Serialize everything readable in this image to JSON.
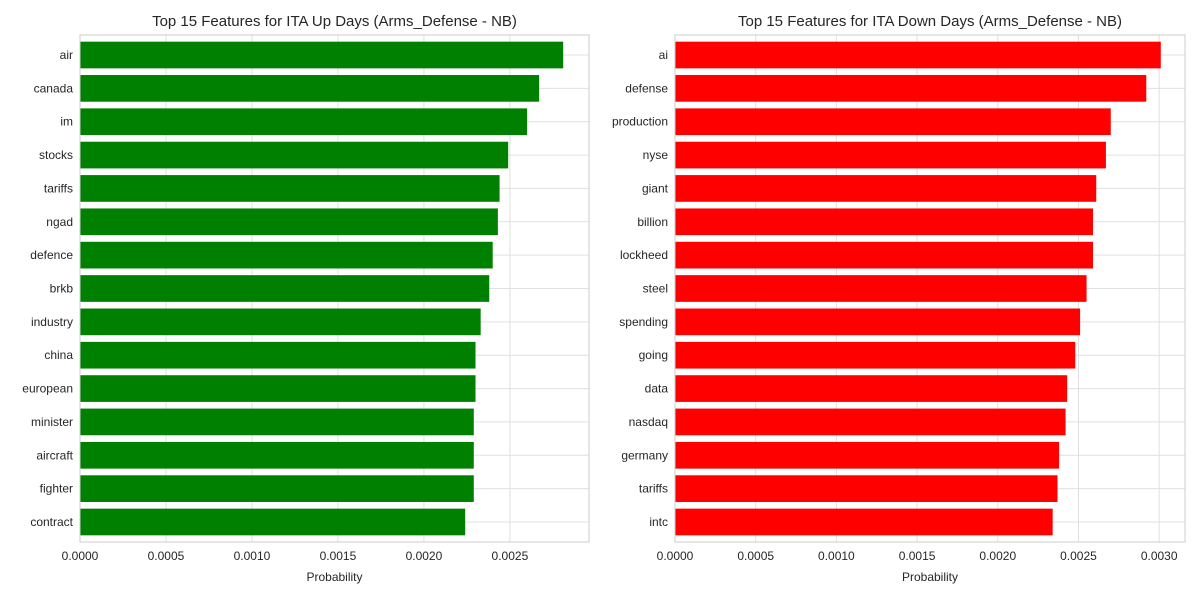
{
  "chart_data": [
    {
      "type": "bar",
      "orientation": "horizontal",
      "title": "Top 15 Features for ITA Up Days (Arms_Defense - NB)",
      "xlabel": "Probability",
      "ylabel": "",
      "xlim": [
        0,
        0.00296
      ],
      "xticks": [
        "0.0000",
        "0.0005",
        "0.0010",
        "0.0015",
        "0.0020",
        "0.0025"
      ],
      "xtick_values": [
        0,
        0.0005,
        0.001,
        0.0015,
        0.002,
        0.0025
      ],
      "grid": true,
      "color": "#008000",
      "categories": [
        "air",
        "canada",
        "im",
        "stocks",
        "tariffs",
        "ngad",
        "defence",
        "brkb",
        "industry",
        "china",
        "european",
        "minister",
        "aircraft",
        "fighter",
        "contract"
      ],
      "values": [
        0.00281,
        0.00267,
        0.0026,
        0.00249,
        0.00244,
        0.00243,
        0.0024,
        0.00238,
        0.00233,
        0.0023,
        0.0023,
        0.00229,
        0.00229,
        0.00229,
        0.00224
      ]
    },
    {
      "type": "bar",
      "orientation": "horizontal",
      "title": "Top 15 Features for ITA Down Days (Arms_Defense - NB)",
      "xlabel": "Probability",
      "ylabel": "",
      "xlim": [
        0,
        0.00316
      ],
      "xticks": [
        "0.0000",
        "0.0005",
        "0.0010",
        "0.0015",
        "0.0020",
        "0.0025",
        "0.0030"
      ],
      "xtick_values": [
        0,
        0.0005,
        0.001,
        0.0015,
        0.002,
        0.0025,
        0.003
      ],
      "grid": true,
      "color": "#ff0000",
      "categories": [
        "ai",
        "defense",
        "production",
        "nyse",
        "giant",
        "billion",
        "lockheed",
        "steel",
        "spending",
        "going",
        "data",
        "nasdaq",
        "germany",
        "tariffs",
        "intc"
      ],
      "values": [
        0.00301,
        0.00292,
        0.0027,
        0.00267,
        0.00261,
        0.00259,
        0.00259,
        0.00255,
        0.00251,
        0.00248,
        0.00243,
        0.00242,
        0.00238,
        0.00237,
        0.00234
      ]
    }
  ]
}
